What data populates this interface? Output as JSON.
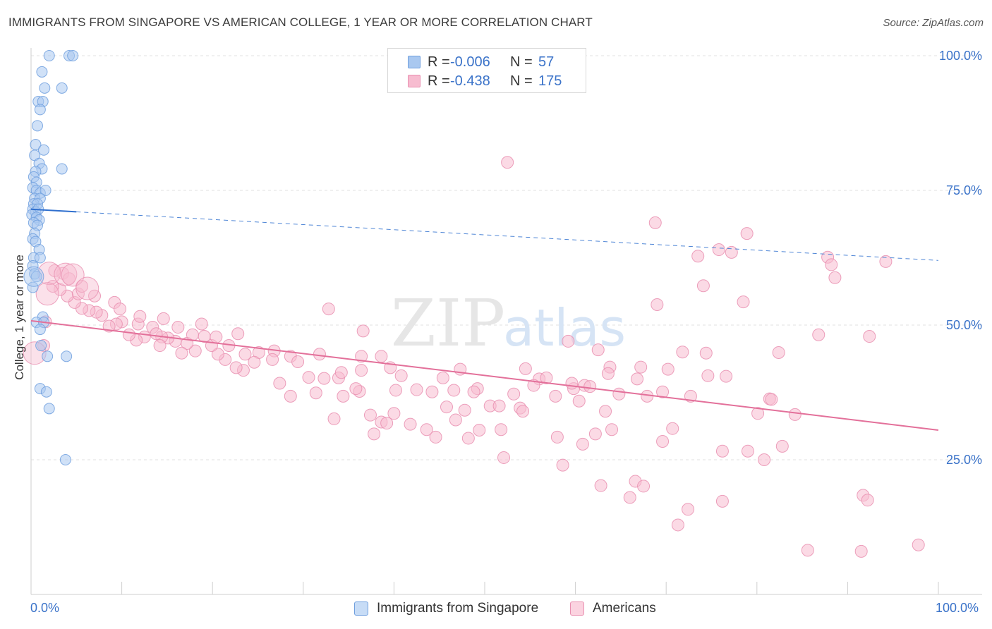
{
  "title": "IMMIGRANTS FROM SINGAPORE VS AMERICAN COLLEGE, 1 YEAR OR MORE CORRELATION CHART",
  "source": "Source: ZipAtlas.com",
  "watermark": {
    "zip": "ZIP",
    "atlas": "atlas"
  },
  "legend": {
    "rows": [
      {
        "r_label": "R =",
        "r_value": "-0.006",
        "n_label": "N =",
        "n_value": "57",
        "color": "#a9c8f0",
        "border": "#6f9fde"
      },
      {
        "r_label": "R =",
        "r_value": "-0.438",
        "n_label": "N =",
        "n_value": "175",
        "color": "#f7bcd0",
        "border": "#e98fb0"
      }
    ]
  },
  "bottom_legend": [
    {
      "label": "Immigrants from Singapore",
      "color": "#c7dcf6",
      "border": "#6f9fde"
    },
    {
      "label": "Americans",
      "color": "#fbd3e0",
      "border": "#e98fb0"
    }
  ],
  "axis_labels": {
    "x_min": "0.0%",
    "x_max": "100.0%",
    "y_ticks": [
      "100.0%",
      "75.0%",
      "50.0%",
      "25.0%"
    ]
  },
  "chart_data": {
    "type": "scatter",
    "title": "IMMIGRANTS FROM SINGAPORE VS AMERICAN COLLEGE, 1 YEAR OR MORE CORRELATION CHART",
    "xlabel": "",
    "ylabel": "College, 1 year or more",
    "xlim": [
      0,
      100
    ],
    "ylim": [
      0,
      100
    ],
    "y_ticks": [
      25,
      50,
      75,
      100
    ],
    "grid": true,
    "series": [
      {
        "name": "Immigrants from Singapore",
        "color": "#6f9fde",
        "fill": "#a9c8f0",
        "r": -0.006,
        "n": 57,
        "trend": {
          "x0": 0,
          "y0": 71.5,
          "x1": 100,
          "y1": 62.0,
          "solid_until": 5
        },
        "points": [
          [
            2.0,
            100
          ],
          [
            4.2,
            100
          ],
          [
            4.6,
            100
          ],
          [
            1.2,
            97
          ],
          [
            1.5,
            94
          ],
          [
            3.4,
            94
          ],
          [
            0.8,
            91.5
          ],
          [
            1.3,
            91.5
          ],
          [
            1.0,
            90
          ],
          [
            0.7,
            87
          ],
          [
            0.5,
            83.5
          ],
          [
            1.4,
            82.5
          ],
          [
            0.4,
            81.5
          ],
          [
            0.9,
            80
          ],
          [
            1.2,
            79
          ],
          [
            3.4,
            79
          ],
          [
            0.5,
            78.5
          ],
          [
            0.3,
            77.5
          ],
          [
            0.6,
            76.5
          ],
          [
            0.2,
            75.5
          ],
          [
            0.6,
            75
          ],
          [
            1.0,
            74.5
          ],
          [
            1.6,
            75
          ],
          [
            0.4,
            73.5
          ],
          [
            1.0,
            73.5
          ],
          [
            0.3,
            72.5
          ],
          [
            0.7,
            72.5
          ],
          [
            0.2,
            71.5
          ],
          [
            0.5,
            71.0
          ],
          [
            0.8,
            71.5
          ],
          [
            0.1,
            70.5
          ],
          [
            0.6,
            70
          ],
          [
            0.9,
            69.5
          ],
          [
            0.3,
            69
          ],
          [
            0.7,
            68.5
          ],
          [
            0.4,
            67
          ],
          [
            0.2,
            66
          ],
          [
            0.5,
            65.5
          ],
          [
            0.9,
            64
          ],
          [
            0.3,
            62.5
          ],
          [
            1.0,
            62.5
          ],
          [
            0.2,
            61
          ],
          [
            0.4,
            59.5
          ],
          [
            0.6,
            59
          ],
          [
            0.2,
            57
          ],
          [
            1.3,
            51.5
          ],
          [
            0.6,
            50.5
          ],
          [
            1.4,
            50.5
          ],
          [
            1.0,
            49.2
          ],
          [
            1.1,
            46.2
          ],
          [
            1.8,
            44.2
          ],
          [
            3.9,
            44.2
          ],
          [
            1.0,
            38.2
          ],
          [
            1.7,
            37.6
          ],
          [
            2.0,
            34.5
          ],
          [
            3.8,
            25.0
          ]
        ],
        "big_points": [
          [
            0.3,
            59.0
          ]
        ]
      },
      {
        "name": "Americans",
        "color": "#e98fb0",
        "fill": "#f7bcd0",
        "r": -0.438,
        "n": 175,
        "trend": {
          "x0": 0,
          "y0": 50.8,
          "x1": 100,
          "y1": 30.5
        },
        "points": [
          [
            52.5,
            80.2
          ],
          [
            68.8,
            69.0
          ],
          [
            78.9,
            67.0
          ],
          [
            75.8,
            64.0
          ],
          [
            77.2,
            63.5
          ],
          [
            94.2,
            61.8
          ],
          [
            73.5,
            62.8
          ],
          [
            87.8,
            62.6
          ],
          [
            88.2,
            61.2
          ],
          [
            88.6,
            58.8
          ],
          [
            74.1,
            57.3
          ],
          [
            69.0,
            53.8
          ],
          [
            78.5,
            54.3
          ],
          [
            32.8,
            53.0
          ],
          [
            36.6,
            48.9
          ],
          [
            59.2,
            47.0
          ],
          [
            86.8,
            48.2
          ],
          [
            92.4,
            47.9
          ],
          [
            62.5,
            45.4
          ],
          [
            71.8,
            45.0
          ],
          [
            74.4,
            44.8
          ],
          [
            82.4,
            44.9
          ],
          [
            63.8,
            42.2
          ],
          [
            67.2,
            42.2
          ],
          [
            70.2,
            41.8
          ],
          [
            47.3,
            41.8
          ],
          [
            39.6,
            42.1
          ],
          [
            54.5,
            41.9
          ],
          [
            56.0,
            40.0
          ],
          [
            76.6,
            40.5
          ],
          [
            66.8,
            40.0
          ],
          [
            63.6,
            41.0
          ],
          [
            61.0,
            38.8
          ],
          [
            59.8,
            38.2
          ],
          [
            55.4,
            38.8
          ],
          [
            49.2,
            38.2
          ],
          [
            46.6,
            37.9
          ],
          [
            44.2,
            37.6
          ],
          [
            42.5,
            38.0
          ],
          [
            40.2,
            37.9
          ],
          [
            36.2,
            37.7
          ],
          [
            34.4,
            36.8
          ],
          [
            31.4,
            37.4
          ],
          [
            28.6,
            36.8
          ],
          [
            35.8,
            38.2
          ],
          [
            57.8,
            36.8
          ],
          [
            60.4,
            35.9
          ],
          [
            72.7,
            36.8
          ],
          [
            67.9,
            36.8
          ],
          [
            50.6,
            35.0
          ],
          [
            51.6,
            35.0
          ],
          [
            53.9,
            34.6
          ],
          [
            54.2,
            34.0
          ],
          [
            45.8,
            34.8
          ],
          [
            47.8,
            34.2
          ],
          [
            40.0,
            33.6
          ],
          [
            37.4,
            33.3
          ],
          [
            38.6,
            32.0
          ],
          [
            46.8,
            32.4
          ],
          [
            48.2,
            29.0
          ],
          [
            49.4,
            30.5
          ],
          [
            51.8,
            30.6
          ],
          [
            58.0,
            29.2
          ],
          [
            60.8,
            27.9
          ],
          [
            62.2,
            29.8
          ],
          [
            64.0,
            30.6
          ],
          [
            70.7,
            30.8
          ],
          [
            69.6,
            28.4
          ],
          [
            76.2,
            26.6
          ],
          [
            79.0,
            26.6
          ],
          [
            80.8,
            25.0
          ],
          [
            82.8,
            27.5
          ],
          [
            84.2,
            33.4
          ],
          [
            80.1,
            33.6
          ],
          [
            81.4,
            36.3
          ],
          [
            63.3,
            34.0
          ],
          [
            52.1,
            25.4
          ],
          [
            58.6,
            24.0
          ],
          [
            62.8,
            20.2
          ],
          [
            66.6,
            21.0
          ],
          [
            67.5,
            20.1
          ],
          [
            66.0,
            18.0
          ],
          [
            72.4,
            15.8
          ],
          [
            71.3,
            12.9
          ],
          [
            76.2,
            17.3
          ],
          [
            85.6,
            8.2
          ],
          [
            91.5,
            8.0
          ],
          [
            97.8,
            9.2
          ],
          [
            91.7,
            18.4
          ],
          [
            92.2,
            17.5
          ],
          [
            43.6,
            30.6
          ],
          [
            44.6,
            29.2
          ],
          [
            39.2,
            31.8
          ],
          [
            33.4,
            32.6
          ],
          [
            37.8,
            29.8
          ],
          [
            41.8,
            31.6
          ],
          [
            30.6,
            40.3
          ],
          [
            32.3,
            40.1
          ],
          [
            33.9,
            40.2
          ],
          [
            36.4,
            41.6
          ],
          [
            27.4,
            39.2
          ],
          [
            26.8,
            45.2
          ],
          [
            25.1,
            44.9
          ],
          [
            24.6,
            43.1
          ],
          [
            23.4,
            41.6
          ],
          [
            22.6,
            42.1
          ],
          [
            21.4,
            43.6
          ],
          [
            20.6,
            44.6
          ],
          [
            19.9,
            46.2
          ],
          [
            19.1,
            47.9
          ],
          [
            18.1,
            45.2
          ],
          [
            17.2,
            46.6
          ],
          [
            16.6,
            44.8
          ],
          [
            15.9,
            47.0
          ],
          [
            15.1,
            47.6
          ],
          [
            14.4,
            47.8
          ],
          [
            13.4,
            49.6
          ],
          [
            12.5,
            47.8
          ],
          [
            11.6,
            47.2
          ],
          [
            10.8,
            48.2
          ],
          [
            10.0,
            50.6
          ],
          [
            9.4,
            50.2
          ],
          [
            8.6,
            49.8
          ],
          [
            7.8,
            51.8
          ],
          [
            7.2,
            52.4
          ],
          [
            6.4,
            52.7
          ],
          [
            5.6,
            53.1
          ],
          [
            4.8,
            54.2
          ],
          [
            4.0,
            55.4
          ],
          [
            3.2,
            56.6
          ],
          [
            2.4,
            57.2
          ],
          [
            11.8,
            50.2
          ],
          [
            13.8,
            48.4
          ],
          [
            14.2,
            46.2
          ],
          [
            16.2,
            49.6
          ],
          [
            17.8,
            48.2
          ],
          [
            21.8,
            46.2
          ],
          [
            23.6,
            44.6
          ],
          [
            26.6,
            43.6
          ],
          [
            28.6,
            44.2
          ],
          [
            29.4,
            43.2
          ],
          [
            31.8,
            44.6
          ],
          [
            34.2,
            41.2
          ],
          [
            36.4,
            44.2
          ],
          [
            38.6,
            44.2
          ],
          [
            40.8,
            40.6
          ],
          [
            45.4,
            40.2
          ],
          [
            48.8,
            37.6
          ],
          [
            53.2,
            37.2
          ],
          [
            56.8,
            40.2
          ],
          [
            59.6,
            39.2
          ],
          [
            61.6,
            38.6
          ],
          [
            64.8,
            37.2
          ],
          [
            69.6,
            37.6
          ],
          [
            74.6,
            40.6
          ],
          [
            81.6,
            36.2
          ],
          [
            22.8,
            48.4
          ],
          [
            18.8,
            50.2
          ],
          [
            14.6,
            51.2
          ],
          [
            9.2,
            54.2
          ],
          [
            5.2,
            55.8
          ],
          [
            7.0,
            55.4
          ],
          [
            3.5,
            59.6
          ],
          [
            4.2,
            58.6
          ],
          [
            5.6,
            57.2
          ],
          [
            2.6,
            60.1
          ],
          [
            1.4,
            46.2
          ],
          [
            1.6,
            50.6
          ],
          [
            9.8,
            53.0
          ],
          [
            12.0,
            51.6
          ],
          [
            20.4,
            47.8
          ]
        ],
        "big_points": [
          [
            2.0,
            59.6
          ],
          [
            3.8,
            59.4
          ],
          [
            4.6,
            59.3
          ],
          [
            6.2,
            56.8
          ],
          [
            1.8,
            55.8
          ],
          [
            0.4,
            44.8
          ]
        ]
      }
    ]
  }
}
